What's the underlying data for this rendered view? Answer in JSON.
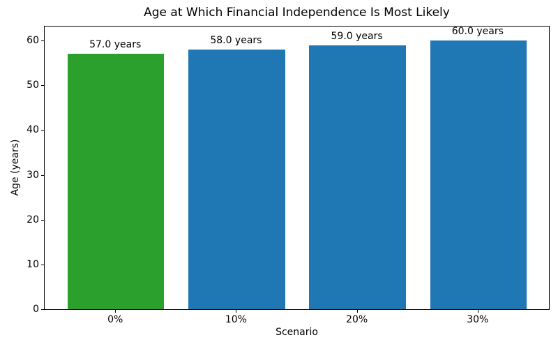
{
  "chart_data": {
    "type": "bar",
    "title": "Age at Which Financial Independence Is Most Likely",
    "xlabel": "Scenario",
    "ylabel": "Age (years)",
    "categories": [
      "0%",
      "10%",
      "20%",
      "30%"
    ],
    "values": [
      57.0,
      58.0,
      59.0,
      60.0
    ],
    "bar_labels": [
      "57.0 years",
      "58.0 years",
      "59.0 years",
      "60.0 years"
    ],
    "bar_colors": [
      "#2ca02c",
      "#1f77b4",
      "#1f77b4",
      "#1f77b4"
    ],
    "yticks": [
      0,
      10,
      20,
      30,
      40,
      50,
      60
    ],
    "ylim": [
      0,
      63.3
    ],
    "grid": false,
    "legend": "none",
    "plot_background": "#ffffff",
    "spine_color": "#000000",
    "text_color": "#000000"
  }
}
